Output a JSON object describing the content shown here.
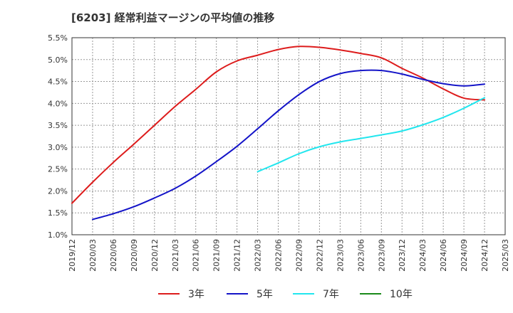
{
  "chart_data": {
    "type": "line",
    "title": "[6203]  経常利益マージンの平均値の推移",
    "xlabel": "",
    "ylabel": "",
    "x": [
      "2019/12",
      "2020/03",
      "2020/06",
      "2020/09",
      "2020/12",
      "2021/03",
      "2021/06",
      "2021/09",
      "2021/12",
      "2022/03",
      "2022/06",
      "2022/09",
      "2022/12",
      "2023/03",
      "2023/06",
      "2023/09",
      "2023/12",
      "2024/03",
      "2024/06",
      "2024/09",
      "2024/12",
      "2025/03"
    ],
    "y_ticks": [
      "1.0%",
      "1.5%",
      "2.0%",
      "2.5%",
      "3.0%",
      "3.5%",
      "4.0%",
      "4.5%",
      "5.0%",
      "5.5%"
    ],
    "ylim": [
      1.0,
      5.5
    ],
    "y_unit": "%",
    "grid": true,
    "legend_position": "bottom",
    "series": [
      {
        "name": "3年",
        "color": "#dd1c1c",
        "values": [
          1.72,
          2.2,
          2.65,
          3.07,
          3.5,
          3.93,
          4.32,
          4.72,
          4.97,
          5.1,
          5.23,
          5.3,
          5.28,
          5.22,
          5.14,
          5.04,
          4.8,
          4.58,
          4.33,
          4.12,
          4.08,
          null
        ]
      },
      {
        "name": "5年",
        "color": "#1414c8",
        "values": [
          null,
          1.35,
          1.48,
          1.64,
          1.84,
          2.06,
          2.34,
          2.67,
          3.02,
          3.42,
          3.83,
          4.2,
          4.5,
          4.68,
          4.75,
          4.75,
          4.67,
          4.55,
          4.45,
          4.4,
          4.44,
          null
        ]
      },
      {
        "name": "7年",
        "color": "#22e6ee",
        "values": [
          null,
          null,
          null,
          null,
          null,
          null,
          null,
          null,
          null,
          2.44,
          2.64,
          2.85,
          3.01,
          3.12,
          3.2,
          3.28,
          3.37,
          3.51,
          3.68,
          3.89,
          4.13,
          null
        ]
      },
      {
        "name": "10年",
        "color": "#1a8a1a",
        "values": [
          null,
          null,
          null,
          null,
          null,
          null,
          null,
          null,
          null,
          null,
          null,
          null,
          null,
          null,
          null,
          null,
          null,
          null,
          null,
          null,
          null,
          null
        ]
      }
    ]
  }
}
